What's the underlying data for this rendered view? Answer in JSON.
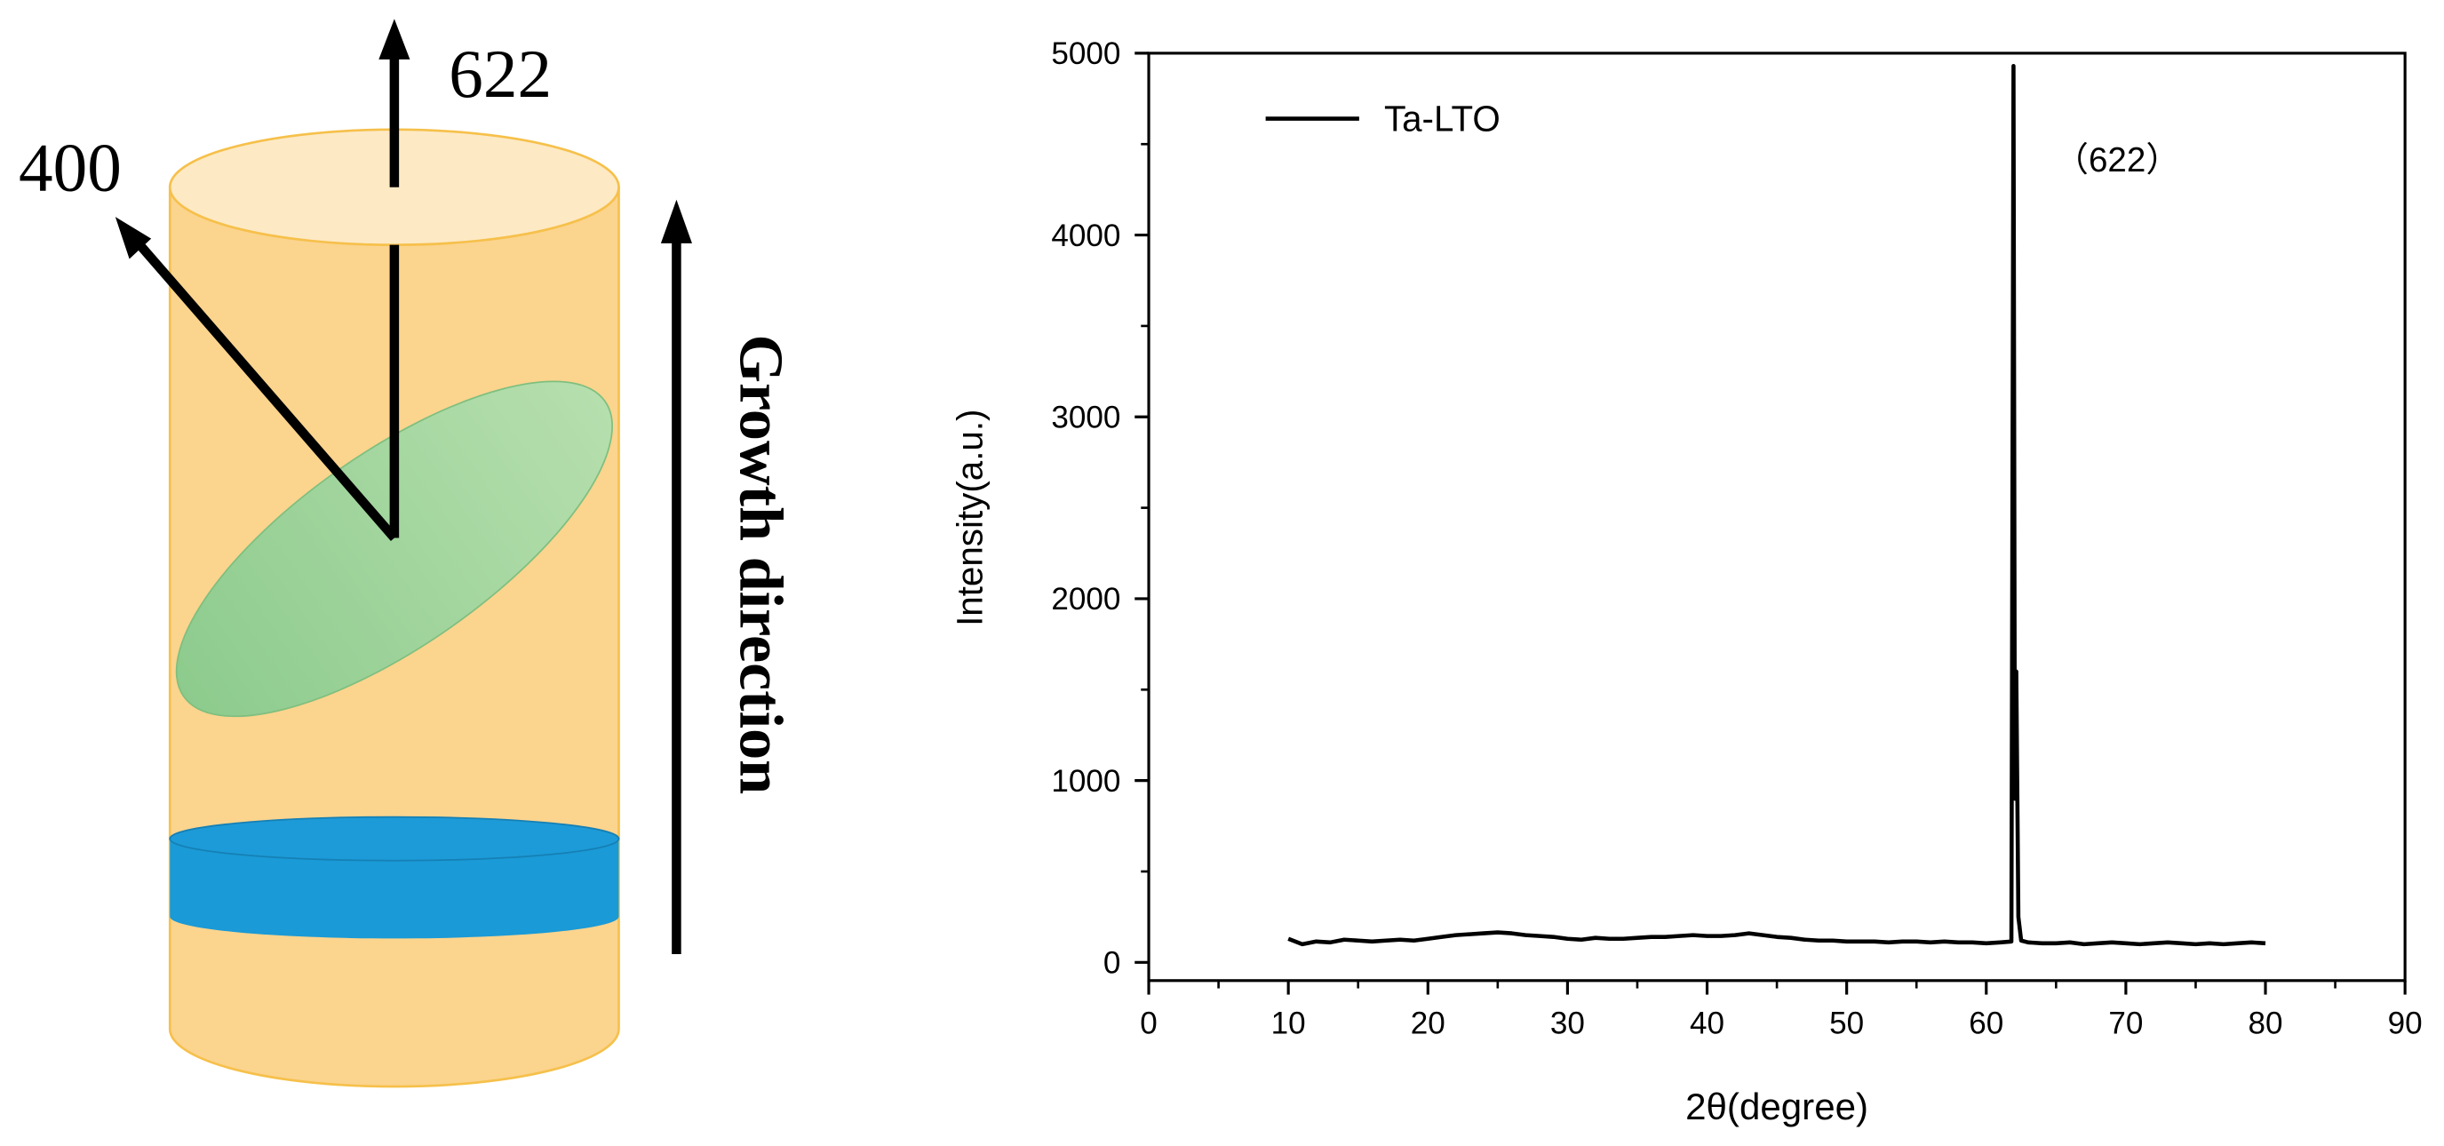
{
  "diagram": {
    "direction_labels": [
      "622",
      "400"
    ],
    "arrow_label": "Growth direction"
  },
  "chart_data": {
    "type": "line",
    "xlabel": "2θ(degree)",
    "ylabel": "Intensity(a.u.)",
    "annotation": "（622）",
    "x": [
      10,
      11,
      12,
      13,
      14,
      15,
      16,
      17,
      18,
      19,
      20,
      21,
      22,
      23,
      24,
      25,
      26,
      27,
      28,
      29,
      30,
      31,
      32,
      33,
      34,
      35,
      36,
      37,
      38,
      39,
      40,
      41,
      42,
      43,
      44,
      45,
      46,
      47,
      48,
      49,
      50,
      51,
      52,
      53,
      54,
      55,
      56,
      57,
      58,
      59,
      60,
      61,
      61.8,
      61.95,
      62.05,
      62.15,
      62.3,
      62.5,
      63,
      64,
      65,
      66,
      67,
      68,
      69,
      70,
      71,
      72,
      73,
      74,
      75,
      76,
      77,
      78,
      79,
      80
    ],
    "series": [
      {
        "name": "Ta-LTO",
        "color": "#000000",
        "values": [
          130,
          100,
          115,
          110,
          125,
          120,
          115,
          120,
          125,
          120,
          130,
          140,
          150,
          155,
          160,
          165,
          160,
          150,
          145,
          140,
          130,
          125,
          135,
          130,
          130,
          135,
          140,
          140,
          145,
          150,
          145,
          145,
          150,
          160,
          150,
          140,
          135,
          125,
          120,
          120,
          115,
          115,
          115,
          110,
          115,
          115,
          110,
          115,
          110,
          110,
          105,
          110,
          115,
          4930,
          900,
          1600,
          250,
          120,
          110,
          105,
          105,
          110,
          100,
          105,
          110,
          105,
          100,
          105,
          110,
          105,
          100,
          105,
          100,
          105,
          110,
          105
        ]
      }
    ],
    "xlim": [
      0,
      90
    ],
    "xticks": [
      0,
      10,
      20,
      30,
      40,
      50,
      60,
      70,
      80,
      90
    ],
    "xminorticks": [
      5,
      15,
      25,
      35,
      45,
      55,
      65,
      75,
      85
    ],
    "ylim": [
      -100,
      5000
    ],
    "yticks": [
      0,
      1000,
      2000,
      3000,
      4000,
      5000
    ],
    "yminorticks": [
      500,
      1500,
      2500,
      3500,
      4500
    ],
    "legend": "upper-left"
  }
}
